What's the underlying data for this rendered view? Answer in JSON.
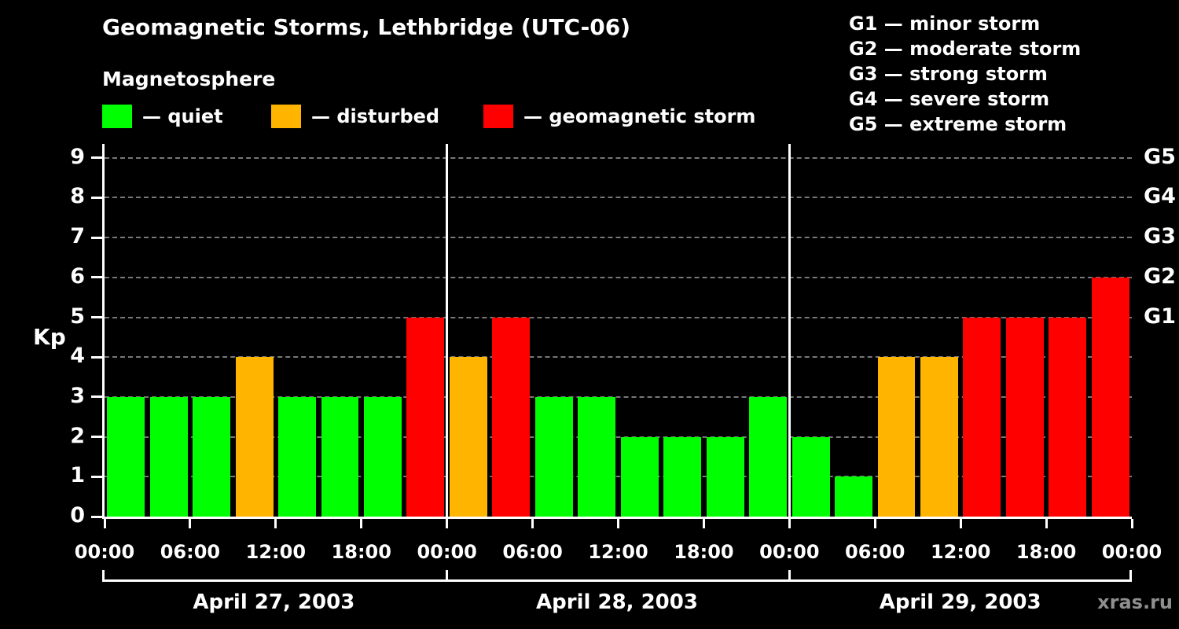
{
  "header": {
    "title": "Geomagnetic Storms, Lethbridge (UTC-06)",
    "subtitle": "Magnetosphere"
  },
  "legend": {
    "items": [
      {
        "key": "quiet",
        "label": "— quiet",
        "color": "#00ff00"
      },
      {
        "key": "disturbed",
        "label": "— disturbed",
        "color": "#ffb400"
      },
      {
        "key": "storm",
        "label": "— geomagnetic storm",
        "color": "#ff0000"
      }
    ]
  },
  "storm_scale": {
    "lines": [
      "G1 — minor storm",
      "G2 — moderate storm",
      "G3 — strong storm",
      "G4 — severe storm",
      "G5 — extreme storm"
    ]
  },
  "watermark": "xras.ru",
  "chart_data": {
    "type": "bar",
    "title": "Geomagnetic Storms, Lethbridge (UTC-06)",
    "ylabel": "Kp",
    "ylim": [
      0,
      9.35
    ],
    "yticks": [
      0,
      1,
      2,
      3,
      4,
      5,
      6,
      7,
      8,
      9
    ],
    "grid": "dashed horizontal gridlines at integer Kp values",
    "legend_position": "top",
    "bar_interval_hours": 3,
    "bars_per_day": 8,
    "colors": {
      "quiet": "#00ff00",
      "disturbed": "#ffb400",
      "storm": "#ff0000"
    },
    "color_rule": {
      "quiet_max_kp": 3,
      "disturbed_kp": 4,
      "storm_min_kp": 5
    },
    "right_axis": [
      {
        "kp": 5,
        "label": "G1"
      },
      {
        "kp": 6,
        "label": "G2"
      },
      {
        "kp": 7,
        "label": "G3"
      },
      {
        "kp": 8,
        "label": "G4"
      },
      {
        "kp": 9,
        "label": "G5"
      }
    ],
    "x_tick_labels_per_day": [
      "00:00",
      "06:00",
      "12:00",
      "18:00"
    ],
    "final_x_tick_label": "00:00",
    "days": [
      {
        "date": "April 27, 2003",
        "kp_values": [
          3,
          3,
          3,
          4,
          3,
          3,
          3,
          5
        ]
      },
      {
        "date": "April 28, 2003",
        "kp_values": [
          4,
          5,
          3,
          3,
          2,
          2,
          2,
          3
        ]
      },
      {
        "date": "April 29, 2003",
        "kp_values": [
          2,
          1,
          4,
          4,
          5,
          5,
          5,
          6
        ]
      }
    ]
  }
}
